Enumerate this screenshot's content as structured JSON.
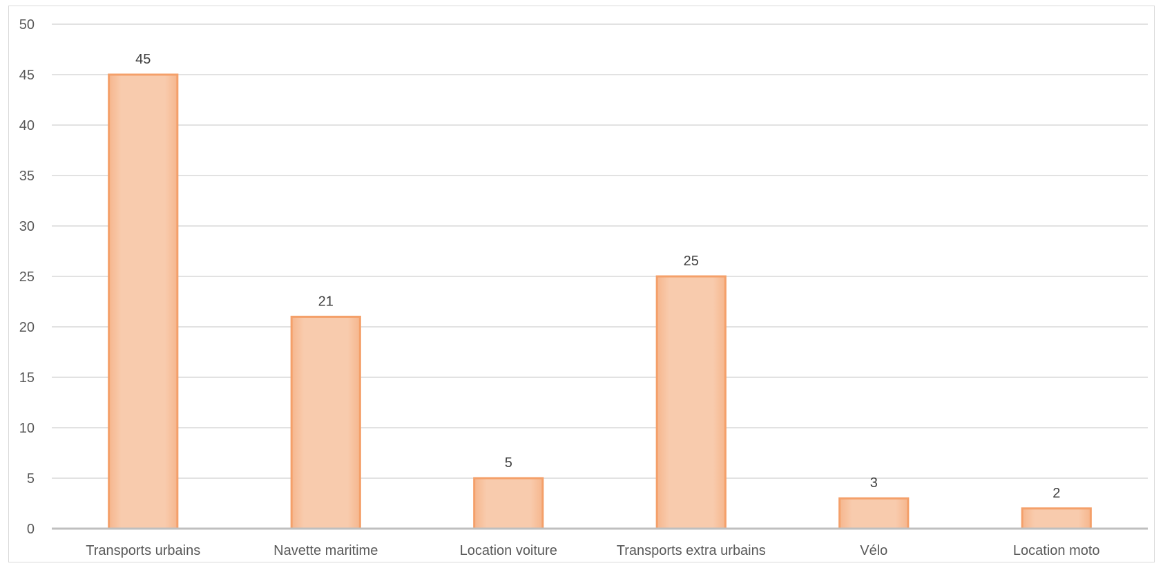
{
  "chart_data": {
    "type": "bar",
    "categories": [
      "Transports urbains",
      "Navette maritime",
      "Location voiture",
      "Transports extra urbains",
      "Vélo",
      "Location moto"
    ],
    "values": [
      45,
      21,
      5,
      25,
      3,
      2
    ],
    "title": "",
    "xlabel": "",
    "ylabel": "",
    "ylim": [
      0,
      50
    ],
    "yticks": [
      0,
      5,
      10,
      15,
      20,
      25,
      30,
      35,
      40,
      45,
      50
    ],
    "grid": true,
    "data_labels": true,
    "legend": "none",
    "colors": {
      "bar_fill": "#f8cbad",
      "bar_edge": "#f4a06a",
      "grid": "#d9d9d9",
      "axis": "#bfbfbf"
    }
  }
}
